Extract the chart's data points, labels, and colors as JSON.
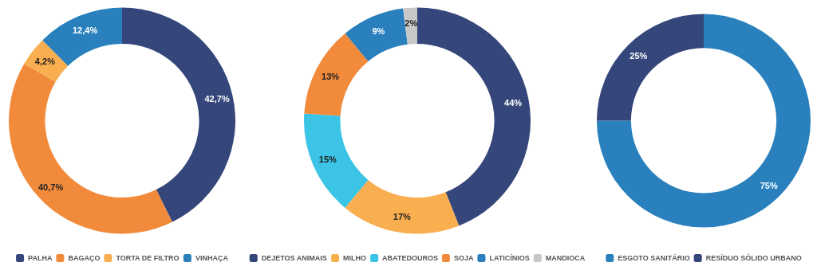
{
  "chart_data": [
    {
      "type": "donut",
      "categories": [
        "PALHA",
        "BAGAÇO",
        "TORTA DE FILTRO",
        "VINHAÇA"
      ],
      "values": [
        42.7,
        40.7,
        4.2,
        12.4
      ],
      "value_labels": [
        "42,7%",
        "40,7%",
        "4,2%",
        "12,4%"
      ],
      "colors": [
        "#34467a",
        "#f28a3c",
        "#f9ae4f",
        "#2980bd"
      ],
      "legend": "bottom"
    },
    {
      "type": "donut",
      "categories": [
        "DEJETOS ANIMAIS",
        "MILHO",
        "ABATEDOUROS",
        "SOJA",
        "LATICÍNIOS",
        "MANDIOCA"
      ],
      "values": [
        44,
        17,
        15,
        13,
        9,
        2
      ],
      "value_labels": [
        "44%",
        "17%",
        "15%",
        "13%",
        "9%",
        "2%"
      ],
      "colors": [
        "#34467a",
        "#f9ae4f",
        "#3bc4e6",
        "#f28a3c",
        "#2980bd",
        "#c8c8c8"
      ],
      "legend": "bottom"
    },
    {
      "type": "donut",
      "categories": [
        "ESGOTO SANITÁRIO",
        "RESÍDUO SÓLIDO URBANO"
      ],
      "values": [
        75,
        25
      ],
      "value_labels": [
        "75%",
        "25%"
      ],
      "colors": [
        "#2980bd",
        "#34467a"
      ],
      "legend": "bottom"
    }
  ]
}
